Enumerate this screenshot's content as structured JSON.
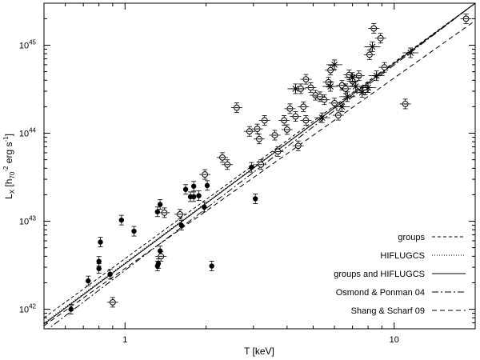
{
  "chart_data": {
    "type": "scatter",
    "title": "",
    "xlabel": "T [keV]",
    "ylabel_parts": {
      "base": "L",
      "sub": "X",
      "bracket_open": " [h",
      "h_sub": "70",
      "h_sup": "-2",
      "units": " erg s",
      "units_sup": "-1",
      "bracket_close": "]"
    },
    "x_scale": "log",
    "y_scale": "log",
    "xlim": [
      0.5,
      20
    ],
    "ylim": [
      6e+41,
      3e+45
    ],
    "x_tick_labels": [
      {
        "value": 1,
        "label": "1"
      },
      {
        "value": 10,
        "label": "10"
      }
    ],
    "y_tick_labels": [
      {
        "value": 1e+42,
        "base": "10",
        "exp": "42"
      },
      {
        "value": 1e+43,
        "base": "10",
        "exp": "43"
      },
      {
        "value": 1e+44,
        "base": "10",
        "exp": "44"
      },
      {
        "value": 1e+45,
        "base": "10",
        "exp": "45"
      }
    ],
    "legend_position": "bottom-right",
    "legend": [
      {
        "name": "groups",
        "dash": "4,3"
      },
      {
        "name": "HIFLUGCS",
        "dash": "1,2"
      },
      {
        "name": "groups and HIFLUGCS",
        "dash": ""
      },
      {
        "name": "Osmond & Ponman 04",
        "dash": "8,3,2,3"
      },
      {
        "name": "Shang & Scharf 09",
        "dash": "6,4"
      }
    ],
    "lines": [
      {
        "name": "groups",
        "dash": "4,3",
        "points": [
          [
            0.5,
            8e+41
          ],
          [
            20,
            3e+45
          ]
        ]
      },
      {
        "name": "HIFLUGCS",
        "dash": "1,2",
        "points": [
          [
            0.5,
            7e+41
          ],
          [
            20,
            3e+45
          ]
        ]
      },
      {
        "name": "groups and HIFLUGCS",
        "dash": "",
        "points": [
          [
            0.5,
            6.8e+41
          ],
          [
            20,
            3e+45
          ]
        ]
      },
      {
        "name": "Osmond & Ponman 04",
        "dash": "8,3,2,3",
        "points": [
          [
            0.5,
            5.5e+41
          ],
          [
            20,
            3e+45
          ]
        ]
      },
      {
        "name": "Shang & Scharf 09",
        "dash": "6,4",
        "points": [
          [
            0.5,
            6.5e+41
          ],
          [
            20,
            1.9e+45
          ]
        ]
      }
    ],
    "series": [
      {
        "name": "filled",
        "marker": "filled-circle",
        "points": [
          [
            0.63,
            1e+42
          ],
          [
            0.73,
            2.1e+42
          ],
          [
            0.8,
            2.9e+42
          ],
          [
            0.8,
            3.5e+42
          ],
          [
            0.81,
            5.8e+42
          ],
          [
            0.88,
            2.5e+42
          ],
          [
            0.97,
            1.03e+43
          ],
          [
            1.08,
            7.7e+42
          ],
          [
            1.32,
            1.28e+43
          ],
          [
            1.32,
            3.1e+42
          ],
          [
            1.33,
            3.3e+42
          ],
          [
            1.35,
            4.6e+42
          ],
          [
            1.35,
            1.55e+43
          ],
          [
            1.62,
            9e+42
          ],
          [
            1.68,
            2.3e+43
          ],
          [
            1.75,
            1.9e+43
          ],
          [
            1.8,
            1.9e+43
          ],
          [
            1.8,
            2.5e+43
          ],
          [
            1.88,
            1.95e+43
          ],
          [
            1.97,
            1.45e+43
          ],
          [
            2.02,
            2.55e+43
          ],
          [
            2.1,
            3.1e+42
          ],
          [
            2.95,
            4.1e+43
          ],
          [
            3.05,
            1.8e+43
          ]
        ]
      },
      {
        "name": "open",
        "marker": "open-circle-bar",
        "points": [
          [
            0.9,
            1.2e+42
          ],
          [
            1.36,
            4e+42
          ],
          [
            1.4,
            1.25e+43
          ],
          [
            1.6,
            1.2e+43
          ],
          [
            1.98,
            3.4e+43
          ],
          [
            2.3,
            5.3e+43
          ],
          [
            2.4,
            4.4e+43
          ],
          [
            2.6,
            1.95e+44
          ],
          [
            2.9,
            1.05e+44
          ],
          [
            3.1,
            1.12e+44
          ],
          [
            3.15,
            8.6e+43
          ],
          [
            3.2,
            4.4e+43
          ],
          [
            3.3,
            1.4e+44
          ],
          [
            3.6,
            9.5e+43
          ],
          [
            3.7,
            6.2e+43
          ],
          [
            3.9,
            1.4e+44
          ],
          [
            4.0,
            1.1e+44
          ],
          [
            4.1,
            1.9e+44
          ],
          [
            4.3,
            1.55e+44
          ],
          [
            4.4,
            7.2e+43
          ],
          [
            4.5,
            3.2e+44
          ],
          [
            4.6,
            2e+44
          ],
          [
            4.7,
            1.4e+44
          ],
          [
            4.7,
            4.1e+44
          ],
          [
            4.9,
            3.3e+44
          ],
          [
            5.1,
            2.7e+44
          ],
          [
            5.3,
            2.6e+44
          ],
          [
            5.5,
            2.4e+44
          ],
          [
            5.7,
            3.8e+44
          ],
          [
            5.8,
            5.2e+44
          ],
          [
            6.0,
            2.2e+44
          ],
          [
            6.2,
            1.6e+44
          ],
          [
            6.4,
            3.5e+44
          ],
          [
            6.6,
            3.2e+44
          ],
          [
            6.8,
            4.6e+44
          ],
          [
            7.0,
            3.9e+44
          ],
          [
            7.4,
            4.5e+44
          ],
          [
            7.8,
            3.1e+44
          ],
          [
            8.1,
            7.8e+44
          ],
          [
            8.4,
            1.55e+45
          ],
          [
            8.9,
            1.2e+45
          ],
          [
            9.2,
            5.6e+44
          ],
          [
            11.0,
            2.15e+44
          ],
          [
            18.5,
            2e+45
          ]
        ]
      },
      {
        "name": "star",
        "marker": "asterisk",
        "points": [
          [
            4.3,
            3.2e+44
          ],
          [
            5.4,
            1.5e+44
          ],
          [
            5.8,
            3.4e+44
          ],
          [
            6.0,
            6e+44
          ],
          [
            6.4,
            2e+44
          ],
          [
            6.7,
            2.6e+44
          ],
          [
            7.0,
            4.3e+44
          ],
          [
            7.2,
            3.4e+44
          ],
          [
            7.6,
            2.9e+44
          ],
          [
            8.0,
            3.3e+44
          ],
          [
            8.3,
            9.6e+44
          ],
          [
            8.6,
            4.5e+44
          ],
          [
            11.5,
            8.2e+44
          ]
        ]
      }
    ]
  }
}
